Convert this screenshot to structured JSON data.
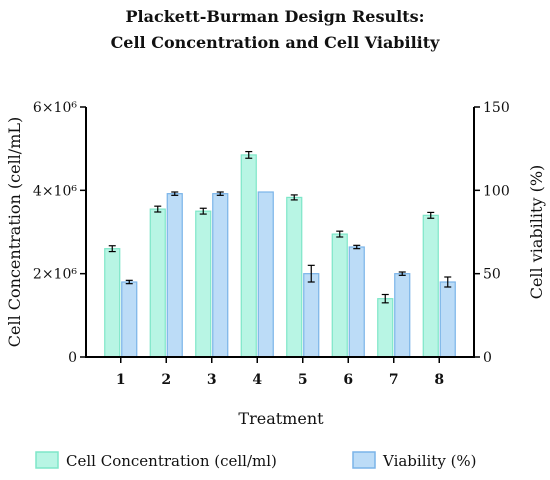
{
  "chart_data": {
    "type": "bar",
    "title_lines": [
      "Plackett-Burman Design Results:",
      "Cell Concentration and Cell Viability"
    ],
    "xlabel": "Treatment",
    "ylabel_left": "Cell Concentration (cell/mL)",
    "ylabel_right": "Cell viability (%)",
    "categories": [
      "1",
      "2",
      "3",
      "4",
      "5",
      "6",
      "7",
      "8"
    ],
    "left_axis": {
      "ylim": [
        0,
        6000000
      ],
      "ticks": [
        0,
        2000000,
        4000000,
        6000000
      ],
      "tick_labels": [
        "0",
        "2×10⁶",
        "4×10⁶",
        "6×10⁶"
      ]
    },
    "right_axis": {
      "ylim": [
        0,
        150
      ],
      "ticks": [
        0,
        50,
        100,
        150
      ],
      "tick_labels": [
        "0",
        "50",
        "100",
        "150"
      ]
    },
    "series": [
      {
        "name": "Cell Concentration (cell/ml)",
        "axis": "left",
        "color": "#b8f5e4",
        "edge": "#7ee6c8",
        "values": [
          2600000,
          3550000,
          3500000,
          4850000,
          3830000,
          2950000,
          1400000,
          3400000
        ],
        "errors": [
          70000,
          70000,
          70000,
          80000,
          60000,
          70000,
          100000,
          70000
        ]
      },
      {
        "name": "Viability (%)",
        "axis": "right",
        "color": "#bcdcf7",
        "edge": "#7ab4e8",
        "values": [
          45,
          98,
          98,
          99,
          50,
          66,
          50,
          45
        ],
        "errors": [
          1,
          1,
          1,
          0,
          5,
          1,
          1,
          3
        ]
      }
    ],
    "legend_position": "bottom",
    "grid": false
  }
}
